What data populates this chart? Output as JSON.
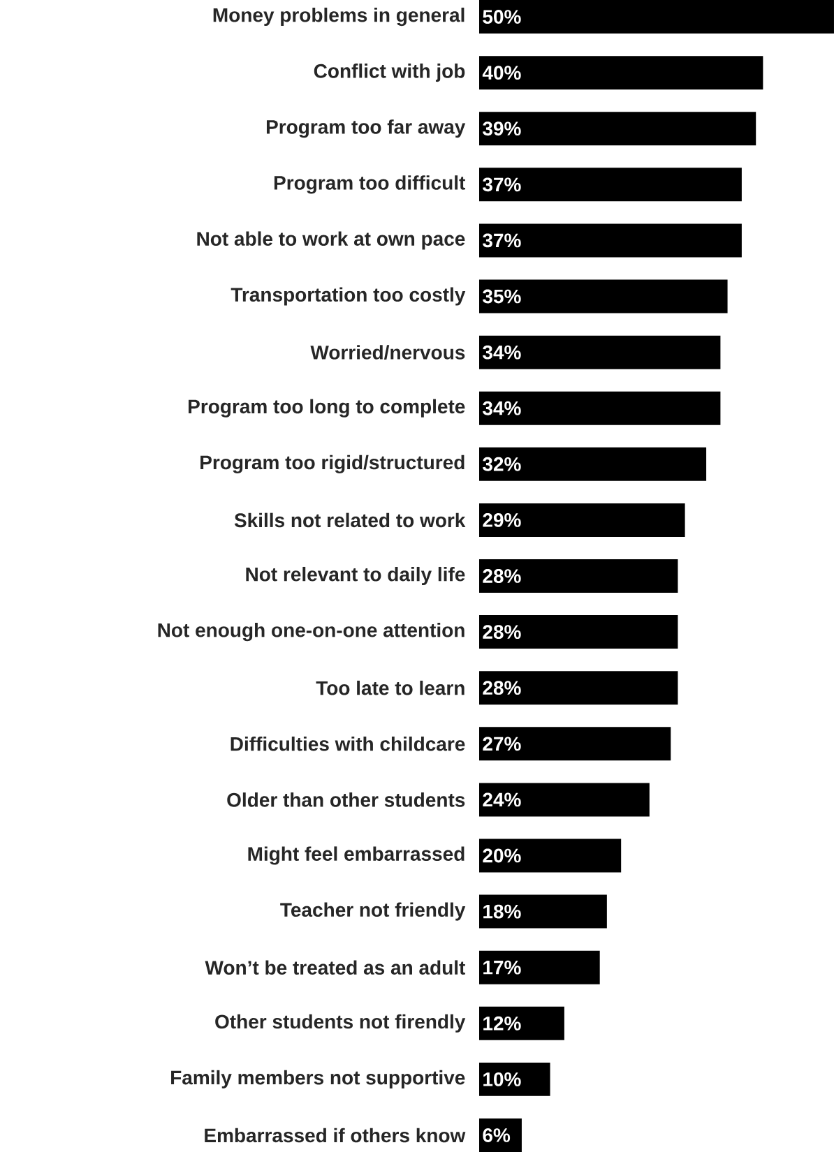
{
  "chart_data": {
    "type": "bar",
    "orientation": "horizontal",
    "color": "#000000",
    "categories": [
      "Money problems in general",
      "Conflict with job",
      "Program too far away",
      "Program too difficult",
      "Not able to work at own pace",
      "Transportation too costly",
      "Worried/nervous",
      "Program too long to complete",
      "Program too rigid/structured",
      "Skills not related to work",
      "Not relevant to daily life",
      "Not enough one-on-one attention",
      "Too late to learn",
      "Difficulties with childcare",
      "Older than other students",
      "Might feel embarrassed",
      "Teacher not friendly",
      "Won’t be treated as an adult",
      "Other students not firendly",
      "Family members not supportive",
      "Embarrassed if others know"
    ],
    "values": [
      50,
      40,
      39,
      37,
      37,
      35,
      34,
      34,
      32,
      29,
      28,
      28,
      28,
      27,
      24,
      20,
      18,
      17,
      12,
      10,
      6
    ],
    "value_labels": [
      "50%",
      "40%",
      "39%",
      "37%",
      "37%",
      "35%",
      "34%",
      "34%",
      "32%",
      "29%",
      "28%",
      "28%",
      "28%",
      "27%",
      "24%",
      "20%",
      "18%",
      "17%",
      "12%",
      "10%",
      "6%"
    ]
  }
}
